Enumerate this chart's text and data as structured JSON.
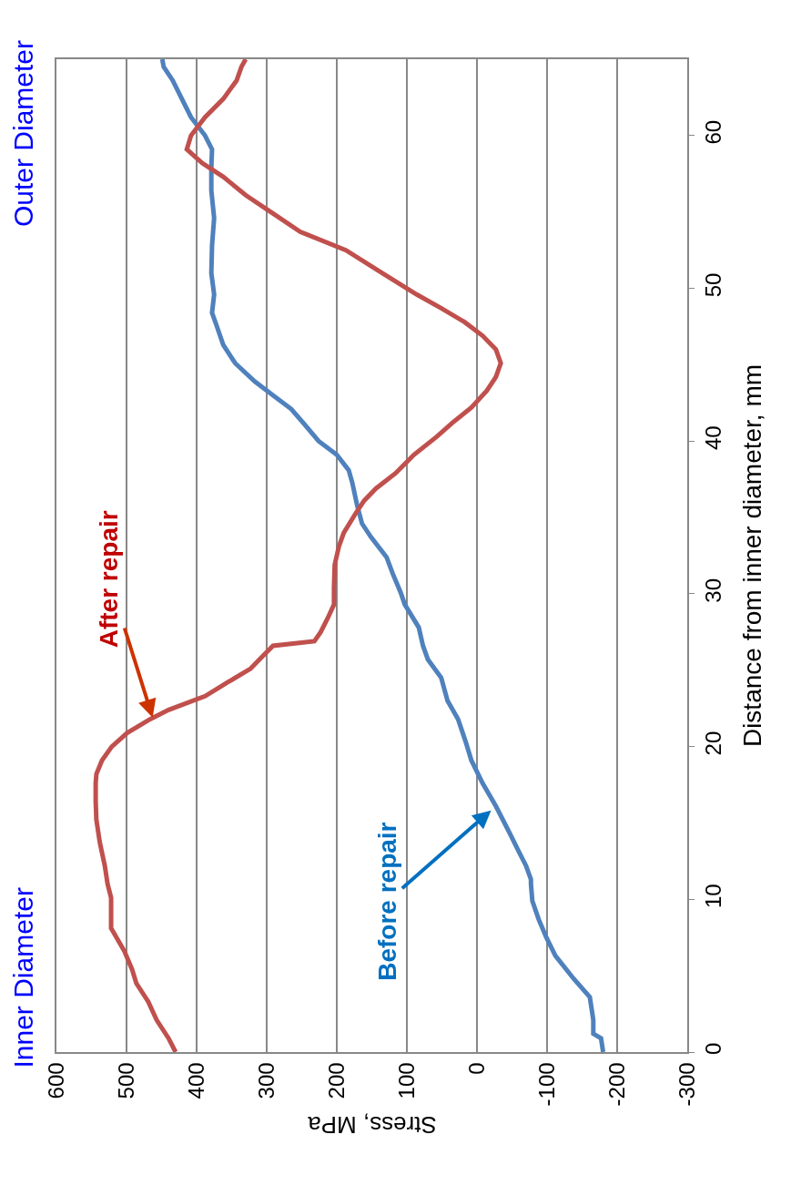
{
  "chart_data": {
    "type": "line",
    "xlabel": "Stress, MPa",
    "ylabel": "Distance from inner diameter, mm",
    "xlim": [
      600,
      -300
    ],
    "xticks": [
      600,
      500,
      400,
      300,
      200,
      100,
      0,
      -100,
      -200,
      -300
    ],
    "ylim": [
      0,
      65
    ],
    "yticks": [
      0,
      10,
      20,
      30,
      40,
      50,
      60
    ],
    "grid": "x",
    "series": [
      {
        "color": "#4f81bd",
        "values": [
          0,
          0.9,
          1.2,
          2.1,
          3.6,
          4.8,
          6.3,
          7.5,
          8.7,
          9.9,
          11,
          11.3,
          12.2,
          13.1,
          14.3,
          16.1,
          17.6,
          19.1,
          20.3,
          21.8,
          23,
          24.5,
          25.7,
          26.6,
          27.8,
          29.3,
          30.1,
          31.3,
          32.4,
          33.7,
          34.6,
          35.8,
          37.3,
          38.1,
          39.1,
          40,
          41.2,
          42.1,
          43,
          43.9,
          45.1,
          46.3,
          47.5,
          48.4,
          49.6,
          51,
          52.8,
          54.6,
          56.4,
          57.9,
          59.1,
          60,
          61.2,
          62.4,
          63.6,
          64.5,
          65
        ],
        "x": [
          -180,
          -177,
          -166,
          -166,
          -161,
          -138,
          -112,
          -99,
          -88,
          -79,
          -77,
          -77,
          -70,
          -60,
          -47,
          -27,
          -8,
          8,
          16,
          27,
          42,
          51,
          70,
          77,
          83,
          103,
          109,
          120,
          129,
          151,
          164,
          171,
          178,
          183,
          200,
          226,
          248,
          265,
          291,
          317,
          345,
          362,
          371,
          378,
          375,
          379,
          378,
          375,
          379,
          379,
          378,
          388,
          408,
          421,
          434,
          447,
          449
        ]
      },
      {
        "color": "#c0504d",
        "values": [
          0,
          0.9,
          2.1,
          3.3,
          4.5,
          5.4,
          6.6,
          7.8,
          8.1,
          9.3,
          10.1,
          11,
          12.2,
          13.7,
          15.2,
          16.4,
          17.6,
          18.2,
          19.1,
          20,
          20.9,
          21.8,
          22.4,
          23.3,
          24.2,
          25.1,
          26,
          26.6,
          26.9,
          27.5,
          28.4,
          29.3,
          30.4,
          31.9,
          33.1,
          34,
          35.2,
          36.1,
          36.9,
          37.9,
          39.1,
          40.3,
          41.2,
          42.2,
          43.3,
          44.2,
          45.1,
          46,
          46.9,
          47.8,
          48.7,
          49.6,
          51,
          52.5,
          53.7,
          54.9,
          56.1,
          57.3,
          58.2,
          59.1,
          60,
          61.2,
          62.4,
          63.6,
          64.5,
          65
        ],
        "x": [
          430,
          440,
          457,
          469,
          486,
          492,
          503,
          518,
          522,
          522,
          522,
          527,
          531,
          538,
          543,
          544,
          544,
          543,
          535,
          521,
          499,
          466,
          440,
          388,
          356,
          323,
          304,
          291,
          232,
          223,
          213,
          204,
          204,
          203,
          197,
          190,
          174,
          161,
          144,
          116,
          90,
          57,
          35,
          8,
          -14,
          -27,
          -34,
          -27,
          -8,
          18,
          51,
          86,
          135,
          187,
          252,
          291,
          330,
          362,
          392,
          414,
          408,
          388,
          362,
          343,
          336,
          330
        ]
      }
    ],
    "annotations": [
      "Inner Diameter",
      "Outer Diameter",
      {
        "text": "After repair",
        "x": 460,
        "y": 21.5
      },
      {
        "text": "Before repair",
        "x": -27,
        "y": 16.1
      }
    ]
  }
}
